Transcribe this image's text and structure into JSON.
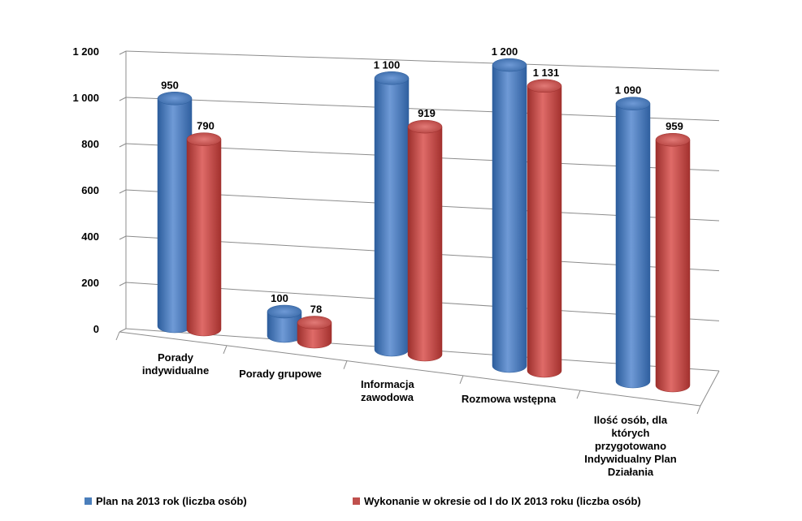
{
  "chart_data": {
    "type": "bar",
    "title": "",
    "xlabel": "",
    "ylabel": "",
    "ylim": [
      0,
      1200
    ],
    "yticks": [
      0,
      200,
      400,
      600,
      800,
      1000,
      1200
    ],
    "ytick_labels": [
      "0",
      "200",
      "400",
      "600",
      "800",
      "1 000",
      "1 200"
    ],
    "categories": [
      "Porady indywidualne",
      "Porady grupowe",
      "Informacja zawodowa",
      "Rozmowa wstępna",
      "Ilość osób, dla których przygotowano Indywidualny Plan Działania"
    ],
    "series": [
      {
        "name": "Plan na 2013 rok (liczba osób)",
        "color": "#4a7ebb",
        "values": [
          950,
          100,
          1100,
          1200,
          1090
        ],
        "labels": [
          "950",
          "100",
          "1 100",
          "1 200",
          "1 090"
        ]
      },
      {
        "name": "Wykonanie w okresie od I do IX 2013 roku (liczba osób)",
        "color": "#c0504d",
        "values": [
          790,
          78,
          919,
          1131,
          959
        ],
        "labels": [
          "790",
          "78",
          "919",
          "1 131",
          "959"
        ]
      }
    ],
    "legend_position": "bottom"
  }
}
